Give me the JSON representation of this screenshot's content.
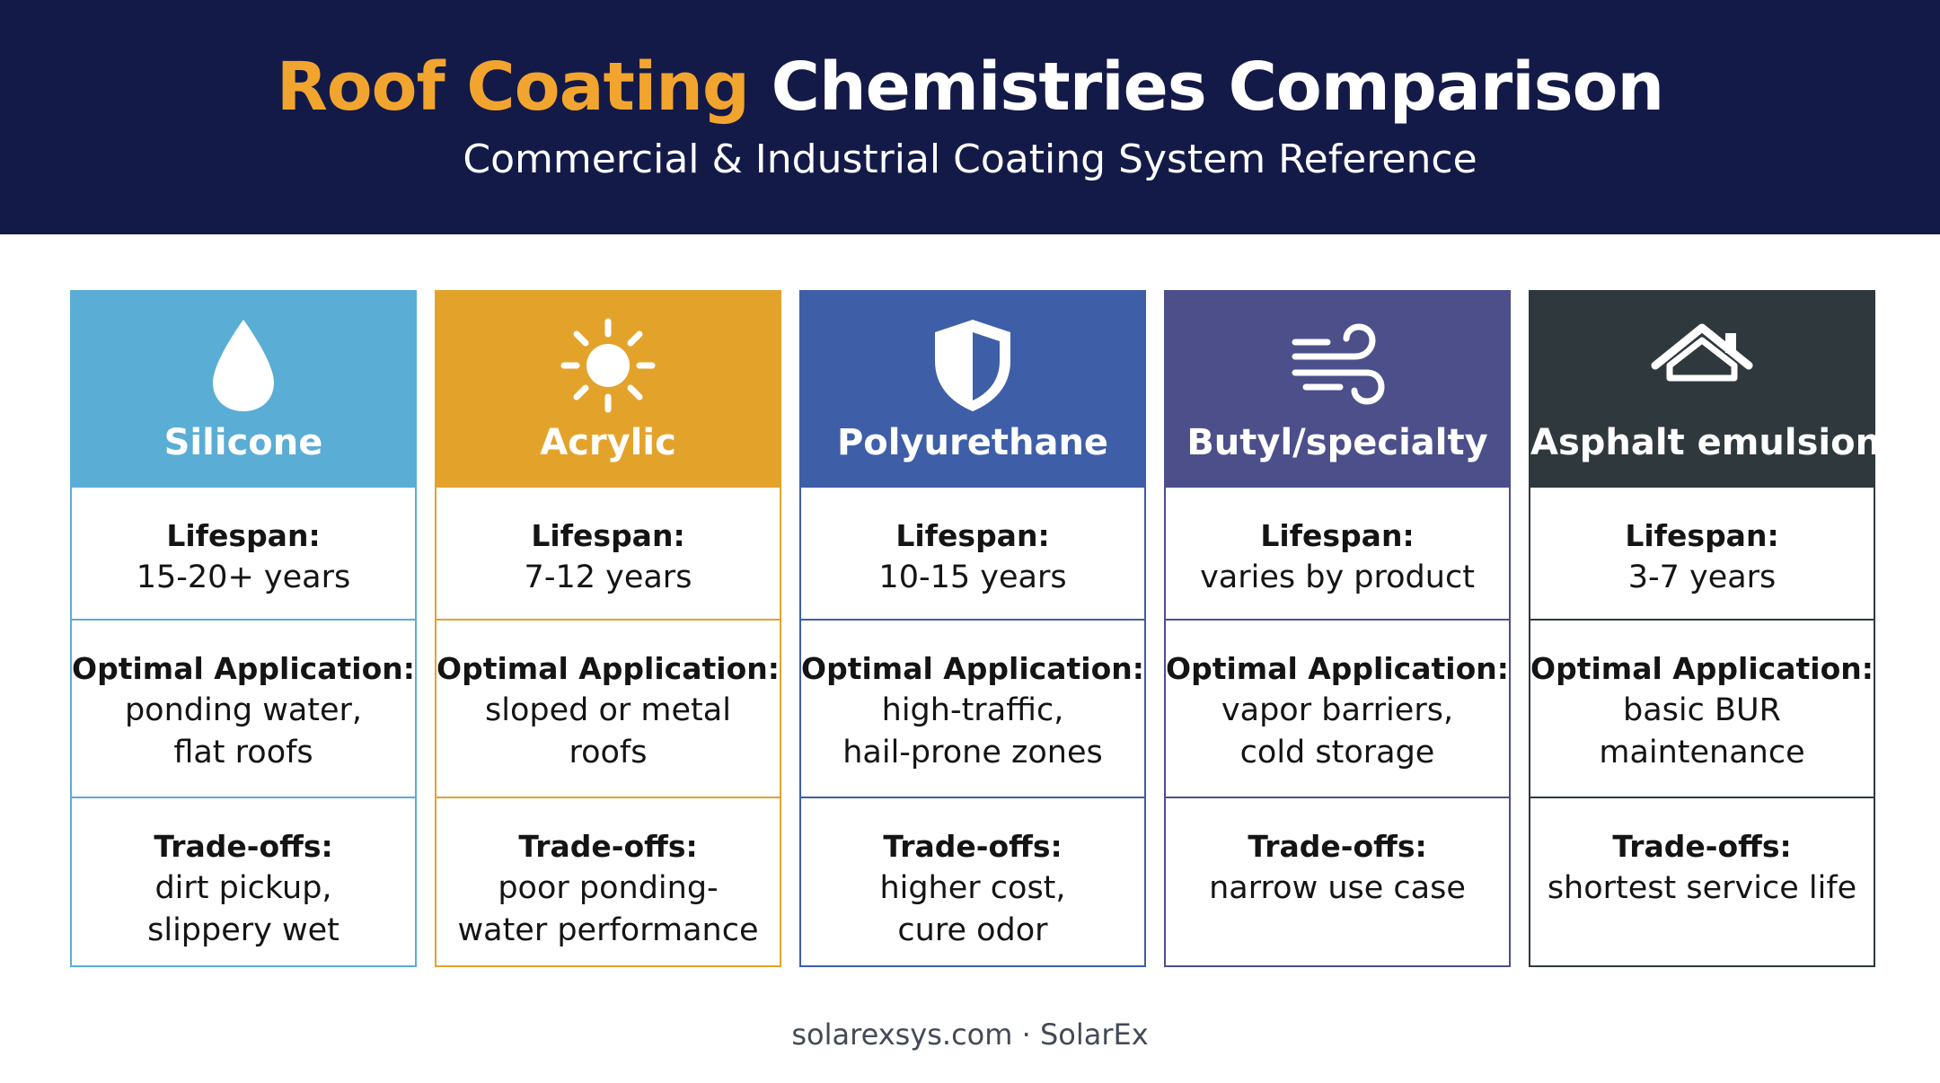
{
  "header": {
    "title_accent": "Roof Coating",
    "title_rest": "Chemistries Comparison",
    "subtitle": "Commercial & Industrial Coating System Reference"
  },
  "colors": {
    "banner": "#141a48",
    "accent": "#f2a52e"
  },
  "columns": [
    {
      "name": "Silicone",
      "icon": "droplet-icon",
      "color": "#5aadd4",
      "lifespan_label": "Lifespan:",
      "lifespan": "15-20+ years",
      "application_label": "Optimal Application:",
      "application": "ponding water,\nflat roofs",
      "tradeoffs_label": "Trade-offs:",
      "tradeoffs": "dirt pickup,\nslippery wet"
    },
    {
      "name": "Acrylic",
      "icon": "sun-icon",
      "color": "#e3a32b",
      "lifespan_label": "Lifespan:",
      "lifespan": "7-12 years",
      "application_label": "Optimal Application:",
      "application": "sloped or metal\nroofs",
      "tradeoffs_label": "Trade-offs:",
      "tradeoffs": "poor ponding-\nwater performance"
    },
    {
      "name": "Polyurethane",
      "icon": "shield-icon",
      "color": "#3e5ea8",
      "lifespan_label": "Lifespan:",
      "lifespan": "10-15 years",
      "application_label": "Optimal Application:",
      "application": "high-traffic,\nhail-prone zones",
      "tradeoffs_label": "Trade-offs:",
      "tradeoffs": "higher cost,\ncure odor"
    },
    {
      "name": "Butyl/specialty",
      "icon": "wind-icon",
      "color": "#4c4f8a",
      "lifespan_label": "Lifespan:",
      "lifespan": "varies by product",
      "application_label": "Optimal Application:",
      "application": "vapor barriers,\ncold storage",
      "tradeoffs_label": "Trade-offs:",
      "tradeoffs": "narrow use case"
    },
    {
      "name": "Asphalt emulsion",
      "icon": "house-icon",
      "color": "#2f383d",
      "lifespan_label": "Lifespan:",
      "lifespan": "3-7 years",
      "application_label": "Optimal Application:",
      "application": "basic BUR\nmaintenance",
      "tradeoffs_label": "Trade-offs:",
      "tradeoffs": "shortest service life"
    }
  ],
  "footer": {
    "text": "solarexsys.com · SolarEx"
  }
}
